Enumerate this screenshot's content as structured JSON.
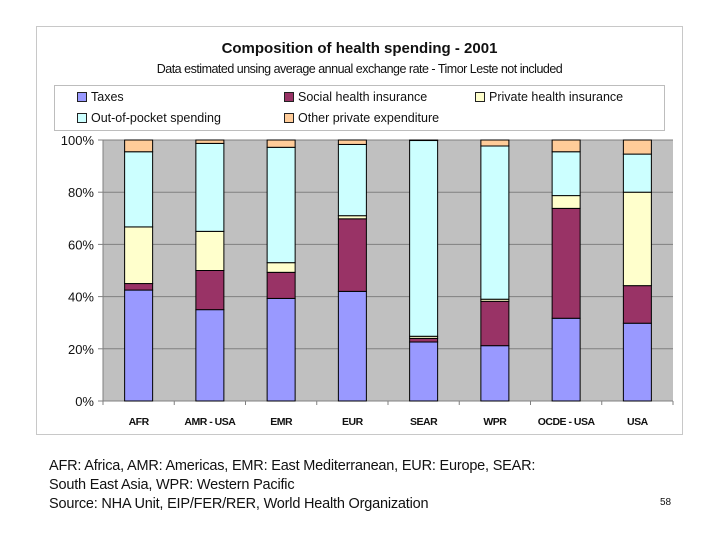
{
  "chart_data": {
    "type": "bar",
    "stacked": true,
    "title": "Composition of health spending - 2001",
    "subtitle": "Data estimated unsing average annual exchange rate - Timor Leste not included",
    "xlabel": "",
    "ylabel": "",
    "ylim": [
      0,
      100
    ],
    "yticks": [
      0,
      20,
      40,
      60,
      80,
      100
    ],
    "ytick_labels": [
      "0%",
      "20%",
      "40%",
      "60%",
      "80%",
      "100%"
    ],
    "grid": true,
    "legend_position": "top",
    "categories": [
      "AFR",
      "AMR - USA",
      "EMR",
      "EUR",
      "SEAR",
      "WPR",
      "OCDE - USA",
      "USA"
    ],
    "series": [
      {
        "name": "Taxes",
        "color": "#9999ff",
        "values": [
          42.5,
          35,
          39.3,
          42,
          22.6,
          21.2,
          31.7,
          29.8
        ]
      },
      {
        "name": "Social health insurance",
        "color": "#993366",
        "values": [
          2.5,
          15,
          10,
          27.8,
          1.4,
          17,
          42.1,
          14.4
        ]
      },
      {
        "name": "Private health insurance",
        "color": "#ffffcc",
        "values": [
          21.7,
          15,
          3.7,
          1.2,
          0.8,
          0.8,
          4.9,
          35.8
        ]
      },
      {
        "name": "Out-of-pocket spending",
        "color": "#ccffff",
        "values": [
          28.8,
          33.7,
          44.2,
          27.3,
          75,
          58.7,
          16.8,
          14.6
        ]
      },
      {
        "name": "Other private expenditure",
        "color": "#ffcc99",
        "values": [
          4.5,
          1.3,
          2.8,
          1.7,
          0.2,
          2.3,
          4.5,
          5.4
        ]
      }
    ]
  },
  "legend": {
    "items": [
      {
        "label": "Taxes",
        "color": "#9999ff"
      },
      {
        "label": "Social health insurance",
        "color": "#993366"
      },
      {
        "label": "Private health insurance",
        "color": "#ffffcc"
      },
      {
        "label": "Out-of-pocket spending",
        "color": "#ccffff"
      },
      {
        "label": "Other private expenditure",
        "color": "#ffcc99"
      }
    ]
  },
  "colors": {
    "plot_background": "#c0c0c0",
    "gridline": "#808080"
  },
  "footnotes": {
    "line1": "AFR: Africa, AMR: Americas, EMR: East Mediterranean, EUR: Europe, SEAR:",
    "line2": "South East Asia, WPR: Western Pacific",
    "line3": "Source: NHA Unit, EIP/FER/RER, World Health Organization"
  },
  "page_number": "58"
}
